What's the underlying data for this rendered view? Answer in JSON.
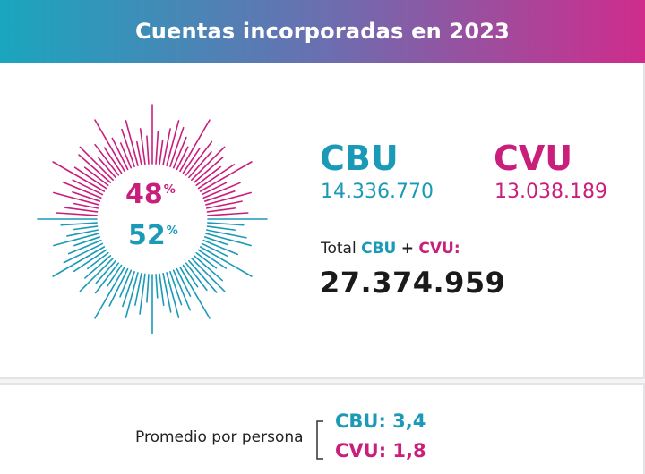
{
  "header": {
    "title": "Cuentas incorporadas en 2023"
  },
  "colors": {
    "cbu": "#1b9ab7",
    "cvu": "#c91e7c"
  },
  "chart_data": {
    "type": "pie",
    "categories": [
      "CVU",
      "CBU"
    ],
    "values": [
      48,
      52
    ],
    "value_labels": [
      "48",
      "52"
    ],
    "unit": "%",
    "colors": [
      "#c91e7c",
      "#1b9ab7"
    ]
  },
  "cbu": {
    "label": "CBU",
    "value": "14.336.770"
  },
  "cvu": {
    "label": "CVU",
    "value": "13.038.189"
  },
  "total": {
    "prefix": "Total",
    "cbu": "CBU",
    "plus": "+",
    "cvu": "CVU:",
    "value": "27.374.959"
  },
  "promedio": {
    "label": "Promedio por persona",
    "cbu": "CBU: 3,4",
    "cvu": "CVU: 1,8"
  }
}
